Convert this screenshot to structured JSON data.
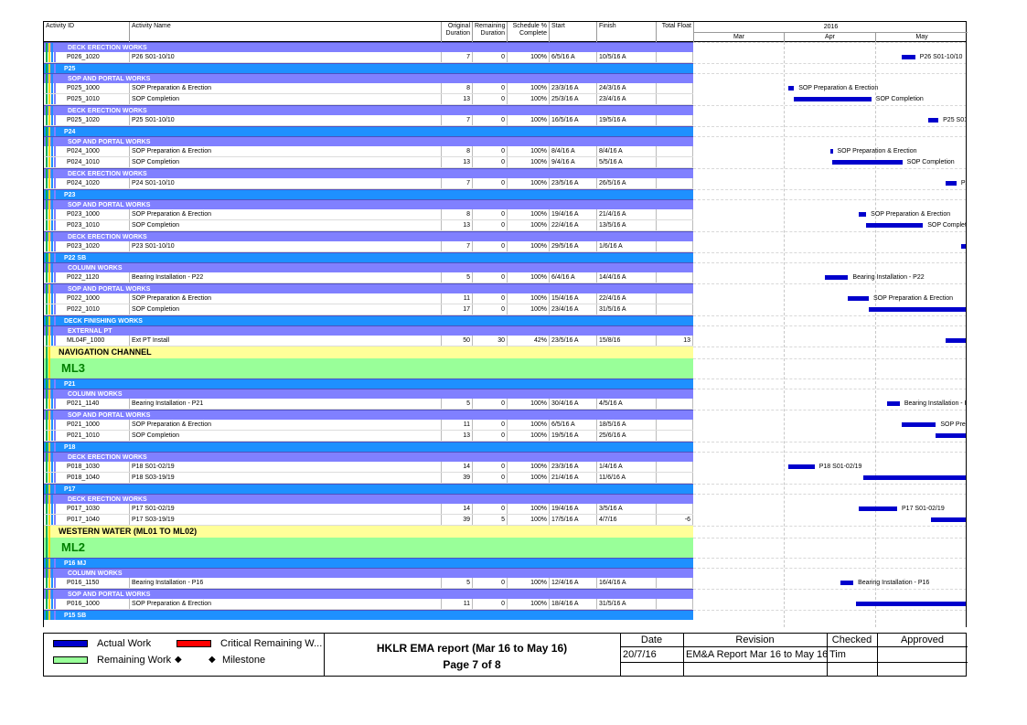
{
  "header": {
    "activity_id": "Activity ID",
    "activity_name": "Activity Name",
    "original_duration": "Original Duration",
    "remaining_duration": "Remaining Duration",
    "schedule_pct": "Schedule % Complete",
    "start": "Start",
    "finish": "Finish",
    "total_float": "Total Float",
    "year": "2016",
    "months": [
      "Mar",
      "Apr",
      "May"
    ]
  },
  "colors": {
    "band_level1": "#1e90ff",
    "band_level2": "#8080ff",
    "band_level3": "#aaaaff",
    "yellow": "#ffff99",
    "green": "#99ff99",
    "bar": "#0000cc",
    "critical": "#ff0000"
  },
  "chart_data": {
    "type": "gantt",
    "timeline": {
      "start": "2016-02-15",
      "end": "2016-05-31",
      "month_labels": [
        "Mar",
        "Apr",
        "May"
      ]
    },
    "rows": [
      {
        "type": "band2",
        "label": "DECK ERECTION WORKS"
      },
      {
        "type": "task",
        "id": "P026_1020",
        "name": "P26 S01-10/10",
        "od": "7",
        "rd": "0",
        "pct": "100%",
        "start": "6/5/16 A",
        "finish": "10/5/16 A",
        "tf": "",
        "bar": [
          "2016-05-06",
          "2016-05-10"
        ],
        "blabel": "P26 S01-10/10"
      },
      {
        "type": "band1",
        "label": "P25"
      },
      {
        "type": "band2",
        "label": "SOP AND PORTAL WORKS"
      },
      {
        "type": "task",
        "id": "P025_1000",
        "name": "SOP Preparation & Erection",
        "od": "8",
        "rd": "0",
        "pct": "100%",
        "start": "23/3/16 A",
        "finish": "24/3/16 A",
        "tf": "",
        "bar": [
          "2016-03-23",
          "2016-03-24"
        ],
        "blabel": "SOP Preparation & Erection"
      },
      {
        "type": "task",
        "id": "P025_1010",
        "name": "SOP Completion",
        "od": "13",
        "rd": "0",
        "pct": "100%",
        "start": "25/3/16 A",
        "finish": "23/4/16 A",
        "tf": "",
        "bar": [
          "2016-03-25",
          "2016-04-23"
        ],
        "blabel": "SOP Completion"
      },
      {
        "type": "band2",
        "label": "DECK ERECTION WORKS"
      },
      {
        "type": "task",
        "id": "P025_1020",
        "name": "P25 S01-10/10",
        "od": "7",
        "rd": "0",
        "pct": "100%",
        "start": "16/5/16 A",
        "finish": "19/5/16 A",
        "tf": "",
        "bar": [
          "2016-05-16",
          "2016-05-19"
        ],
        "blabel": "P25 S01-1"
      },
      {
        "type": "band1",
        "label": "P24"
      },
      {
        "type": "band2",
        "label": "SOP AND PORTAL WORKS"
      },
      {
        "type": "task",
        "id": "P024_1000",
        "name": "SOP Preparation & Erection",
        "od": "8",
        "rd": "0",
        "pct": "100%",
        "start": "8/4/16 A",
        "finish": "8/4/16 A",
        "tf": "",
        "bar": [
          "2016-04-08",
          "2016-04-08"
        ],
        "blabel": "SOP Preparation & Erection"
      },
      {
        "type": "task",
        "id": "P024_1010",
        "name": "SOP Completion",
        "od": "13",
        "rd": "0",
        "pct": "100%",
        "start": "9/4/16 A",
        "finish": "5/5/16 A",
        "tf": "",
        "bar": [
          "2016-04-09",
          "2016-05-05"
        ],
        "blabel": "SOP Completion"
      },
      {
        "type": "band2",
        "label": "DECK ERECTION WORKS"
      },
      {
        "type": "task",
        "id": "P024_1020",
        "name": "P24 S01-10/10",
        "od": "7",
        "rd": "0",
        "pct": "100%",
        "start": "23/5/16 A",
        "finish": "26/5/16 A",
        "tf": "",
        "bar": [
          "2016-05-23",
          "2016-05-26"
        ],
        "blabel": "P24"
      },
      {
        "type": "band1",
        "label": "P23"
      },
      {
        "type": "band2",
        "label": "SOP AND PORTAL WORKS"
      },
      {
        "type": "task",
        "id": "P023_1000",
        "name": "SOP Preparation & Erection",
        "od": "8",
        "rd": "0",
        "pct": "100%",
        "start": "19/4/16 A",
        "finish": "21/4/16 A",
        "tf": "",
        "bar": [
          "2016-04-19",
          "2016-04-21"
        ],
        "blabel": "SOP Preparation & Erection"
      },
      {
        "type": "task",
        "id": "P023_1010",
        "name": "SOP Completion",
        "od": "13",
        "rd": "0",
        "pct": "100%",
        "start": "22/4/16 A",
        "finish": "13/5/16 A",
        "tf": "",
        "bar": [
          "2016-04-22",
          "2016-05-13"
        ],
        "blabel": "SOP Completion"
      },
      {
        "type": "band2",
        "label": "DECK ERECTION WORKS"
      },
      {
        "type": "task",
        "id": "P023_1020",
        "name": "P23 S01-10/10",
        "od": "7",
        "rd": "0",
        "pct": "100%",
        "start": "29/5/16 A",
        "finish": "1/6/16 A",
        "tf": "",
        "bar": [
          "2016-05-29",
          "2016-06-01"
        ],
        "blabel": ""
      },
      {
        "type": "band1",
        "label": "P22 SB"
      },
      {
        "type": "band2",
        "label": "COLUMN WORKS"
      },
      {
        "type": "task",
        "id": "P022_1120",
        "name": "Bearing Installation - P22",
        "od": "5",
        "rd": "0",
        "pct": "100%",
        "start": "6/4/16 A",
        "finish": "14/4/16 A",
        "tf": "",
        "bar": [
          "2016-04-06",
          "2016-04-14"
        ],
        "blabel": "Bearing Installation - P22"
      },
      {
        "type": "band2",
        "label": "SOP AND PORTAL WORKS"
      },
      {
        "type": "task",
        "id": "P022_1000",
        "name": "SOP Preparation & Erection",
        "od": "11",
        "rd": "0",
        "pct": "100%",
        "start": "15/4/16 A",
        "finish": "22/4/16 A",
        "tf": "",
        "bar": [
          "2016-04-15",
          "2016-04-22"
        ],
        "blabel": "SOP Preparation & Erection"
      },
      {
        "type": "task",
        "id": "P022_1010",
        "name": "SOP Completion",
        "od": "17",
        "rd": "0",
        "pct": "100%",
        "start": "23/4/16 A",
        "finish": "31/5/16 A",
        "tf": "",
        "bar": [
          "2016-04-23",
          "2016-05-31"
        ],
        "blabel": ""
      },
      {
        "type": "band1",
        "label": "DECK FINISHING WORKS"
      },
      {
        "type": "band2",
        "label": "EXTERNAL PT"
      },
      {
        "type": "task",
        "id": "ML04F_1000",
        "name": "Ext PT Install",
        "od": "50",
        "rd": "30",
        "pct": "42%",
        "start": "23/5/16 A",
        "finish": "15/8/16",
        "tf": "13",
        "bar": [
          "2016-05-23",
          "2016-06-10"
        ],
        "blabel": ""
      },
      {
        "type": "yellow",
        "label": "NAVIGATION CHANNEL"
      },
      {
        "type": "green",
        "label": "ML3"
      },
      {
        "type": "band1",
        "label": "P21"
      },
      {
        "type": "band2",
        "label": "COLUMN WORKS"
      },
      {
        "type": "task",
        "id": "P021_1140",
        "name": "Bearing Installation - P21",
        "od": "5",
        "rd": "0",
        "pct": "100%",
        "start": "30/4/16 A",
        "finish": "4/5/16 A",
        "tf": "",
        "bar": [
          "2016-04-30",
          "2016-05-04"
        ],
        "blabel": "Bearing Installation - P21"
      },
      {
        "type": "band2",
        "label": "SOP AND PORTAL WORKS"
      },
      {
        "type": "task",
        "id": "P021_1000",
        "name": "SOP Preparation & Erection",
        "od": "11",
        "rd": "0",
        "pct": "100%",
        "start": "6/5/16 A",
        "finish": "18/5/16 A",
        "tf": "",
        "bar": [
          "2016-05-06",
          "2016-05-18"
        ],
        "blabel": "SOP Prepa"
      },
      {
        "type": "task",
        "id": "P021_1010",
        "name": "SOP Completion",
        "od": "13",
        "rd": "0",
        "pct": "100%",
        "start": "19/5/16 A",
        "finish": "25/6/16 A",
        "tf": "",
        "bar": [
          "2016-05-19",
          "2016-06-25"
        ],
        "blabel": ""
      },
      {
        "type": "band1",
        "label": "P18"
      },
      {
        "type": "band2",
        "label": "DECK ERECTION WORKS"
      },
      {
        "type": "task",
        "id": "P018_1030",
        "name": "P18 S01-02/19",
        "od": "14",
        "rd": "0",
        "pct": "100%",
        "start": "23/3/16 A",
        "finish": "1/4/16 A",
        "tf": "",
        "bar": [
          "2016-03-23",
          "2016-04-01"
        ],
        "blabel": "P18 S01-02/19"
      },
      {
        "type": "task",
        "id": "P018_1040",
        "name": "P18 S03-19/19",
        "od": "39",
        "rd": "0",
        "pct": "100%",
        "start": "21/4/16 A",
        "finish": "11/6/16 A",
        "tf": "",
        "bar": [
          "2016-04-21",
          "2016-06-11"
        ],
        "blabel": ""
      },
      {
        "type": "band1",
        "label": "P17"
      },
      {
        "type": "band2",
        "label": "DECK ERECTION WORKS"
      },
      {
        "type": "task",
        "id": "P017_1030",
        "name": "P17 S01-02/19",
        "od": "14",
        "rd": "0",
        "pct": "100%",
        "start": "19/4/16 A",
        "finish": "3/5/16 A",
        "tf": "",
        "bar": [
          "2016-04-19",
          "2016-05-03"
        ],
        "blabel": "P17 S01-02/19"
      },
      {
        "type": "task",
        "id": "P017_1040",
        "name": "P17 S03-19/19",
        "od": "39",
        "rd": "5",
        "pct": "100%",
        "start": "17/5/16 A",
        "finish": "4/7/16",
        "tf": "-6",
        "bar": [
          "2016-05-17",
          "2016-07-04"
        ],
        "blabel": ""
      },
      {
        "type": "yellow",
        "label": "WESTERN WATER (ML01 TO ML02)"
      },
      {
        "type": "green",
        "label": "ML2"
      },
      {
        "type": "band1",
        "label": "P16 MJ"
      },
      {
        "type": "band2",
        "label": "COLUMN WORKS"
      },
      {
        "type": "task",
        "id": "P016_1150",
        "name": "Bearing Installation - P16",
        "od": "5",
        "rd": "0",
        "pct": "100%",
        "start": "12/4/16 A",
        "finish": "16/4/16 A",
        "tf": "",
        "bar": [
          "2016-04-12",
          "2016-04-16"
        ],
        "blabel": "Bearing Installation - P16"
      },
      {
        "type": "band2",
        "label": "SOP AND PORTAL WORKS"
      },
      {
        "type": "task",
        "id": "P016_1000",
        "name": "SOP Preparation & Erection",
        "od": "11",
        "rd": "0",
        "pct": "100%",
        "start": "18/4/16 A",
        "finish": "31/5/16 A",
        "tf": "",
        "bar": [
          "2016-04-18",
          "2016-05-31"
        ],
        "blabel": ""
      },
      {
        "type": "band1",
        "label": "P15 SB"
      }
    ]
  },
  "footer": {
    "legend": {
      "actual_work": "Actual Work",
      "critical_remaining": "Critical Remaining W...",
      "remaining_work": "Remaining Work",
      "milestone": "Milestone",
      "diamond": "◆"
    },
    "title_line1": "HKLR EMA report (Mar 16 to May 16)",
    "title_line2": "Page 7 of 8",
    "table": {
      "date_h": "Date",
      "revision_h": "Revision",
      "checked_h": "Checked",
      "approved_h": "Approved",
      "date": "20/7/16",
      "revision": "EM&A Report Mar 16 to May 16",
      "checked": "Tim",
      "approved": ""
    }
  }
}
